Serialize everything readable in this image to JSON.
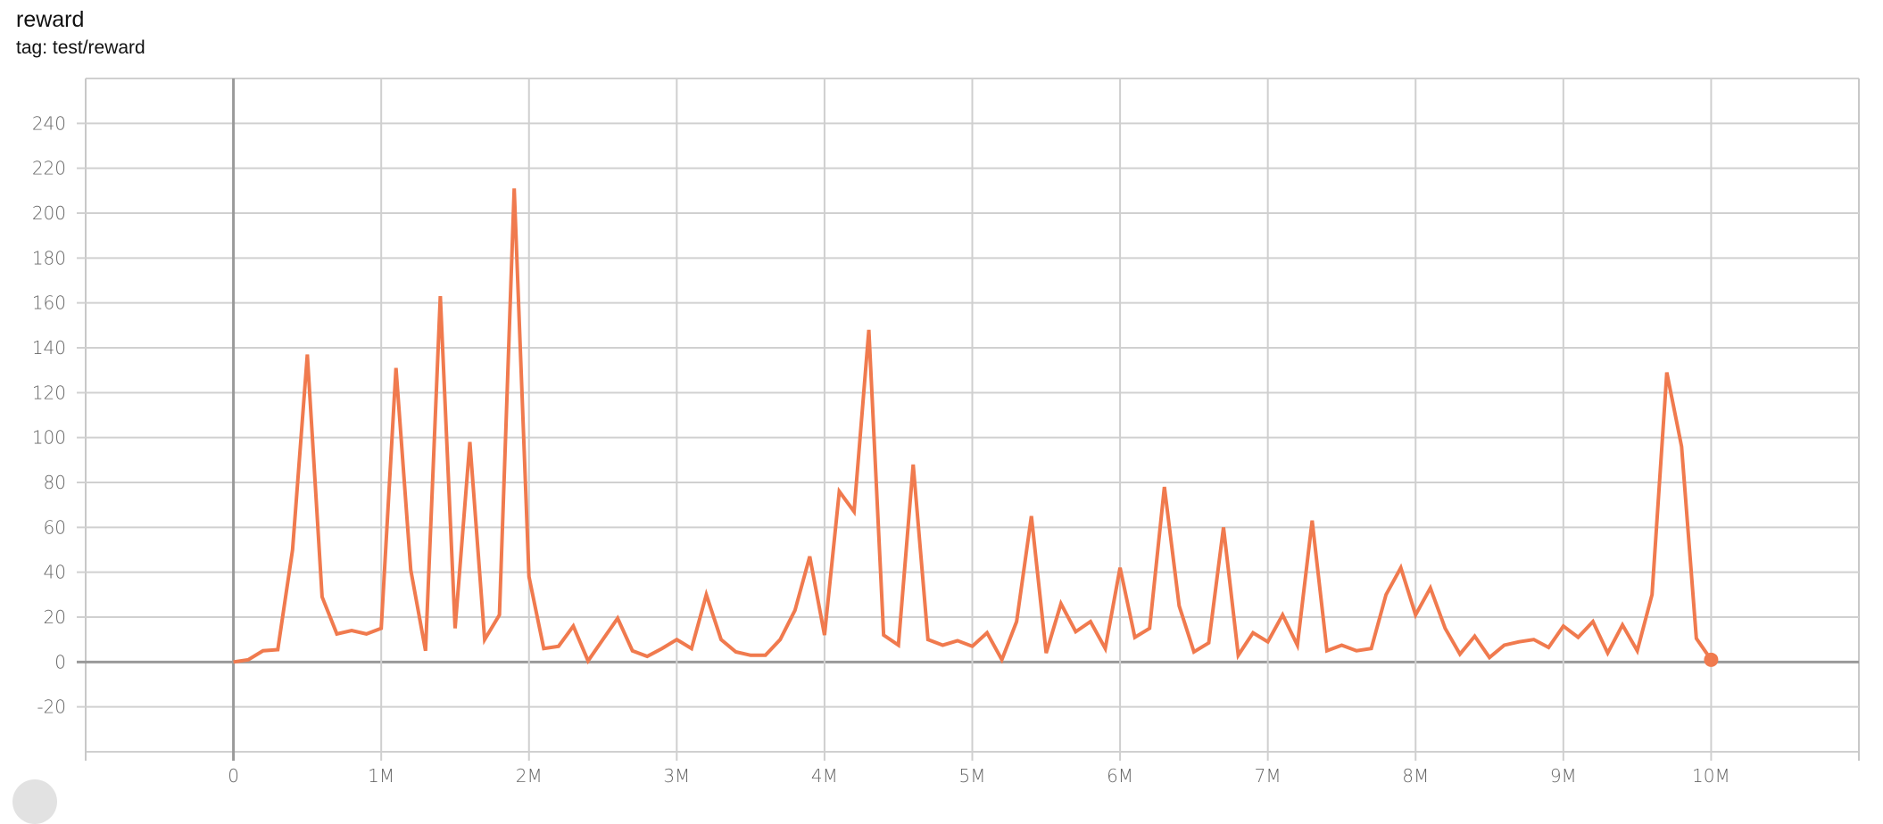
{
  "header": {
    "title": "reward",
    "subtitle": "tag: test/reward"
  },
  "chart_data": {
    "type": "line",
    "title": "reward",
    "xlabel": "",
    "ylabel": "",
    "xlim": [
      -1000000,
      11000000
    ],
    "ylim": [
      -40,
      260
    ],
    "grid": true,
    "line_color": "#f07a4e",
    "x_ticks": [
      0,
      1000000,
      2000000,
      3000000,
      4000000,
      5000000,
      6000000,
      7000000,
      8000000,
      9000000,
      10000000
    ],
    "x_tick_labels": [
      "0",
      "1M",
      "2M",
      "3M",
      "4M",
      "5M",
      "6M",
      "7M",
      "8M",
      "9M",
      "10M"
    ],
    "y_ticks": [
      -20,
      0,
      20,
      40,
      60,
      80,
      100,
      120,
      140,
      160,
      180,
      200,
      220,
      240
    ],
    "y_tick_labels": [
      "-20",
      "0",
      "20",
      "40",
      "60",
      "80",
      "100",
      "120",
      "140",
      "160",
      "180",
      "200",
      "220",
      "240"
    ],
    "series": [
      {
        "x_step": 100000,
        "x_start": 0,
        "values": [
          0,
          1,
          5,
          5.5,
          50,
          137,
          29,
          12.5,
          14,
          12.5,
          15,
          131,
          41,
          5,
          163,
          15,
          98,
          10,
          21,
          211,
          38,
          6,
          7,
          16,
          0.5,
          10,
          19.5,
          5,
          2.5,
          6,
          10,
          6,
          30,
          10,
          4.5,
          3,
          3,
          10,
          23,
          47,
          12,
          76,
          67,
          148,
          12,
          7.5,
          88,
          10,
          7.5,
          9.5,
          7,
          13,
          1,
          18,
          65,
          4,
          26,
          13.5,
          18,
          6,
          42,
          11,
          15,
          78,
          25,
          4.5,
          8.5,
          60,
          3,
          13,
          9,
          21,
          7.5,
          63,
          5,
          7.5,
          5,
          6,
          30,
          42,
          21,
          33,
          15,
          3.5,
          11.5,
          2,
          7.5,
          9,
          10,
          6.5,
          16,
          11,
          18,
          4,
          16.5,
          5,
          30,
          129,
          96,
          10.5,
          1
        ]
      }
    ]
  }
}
